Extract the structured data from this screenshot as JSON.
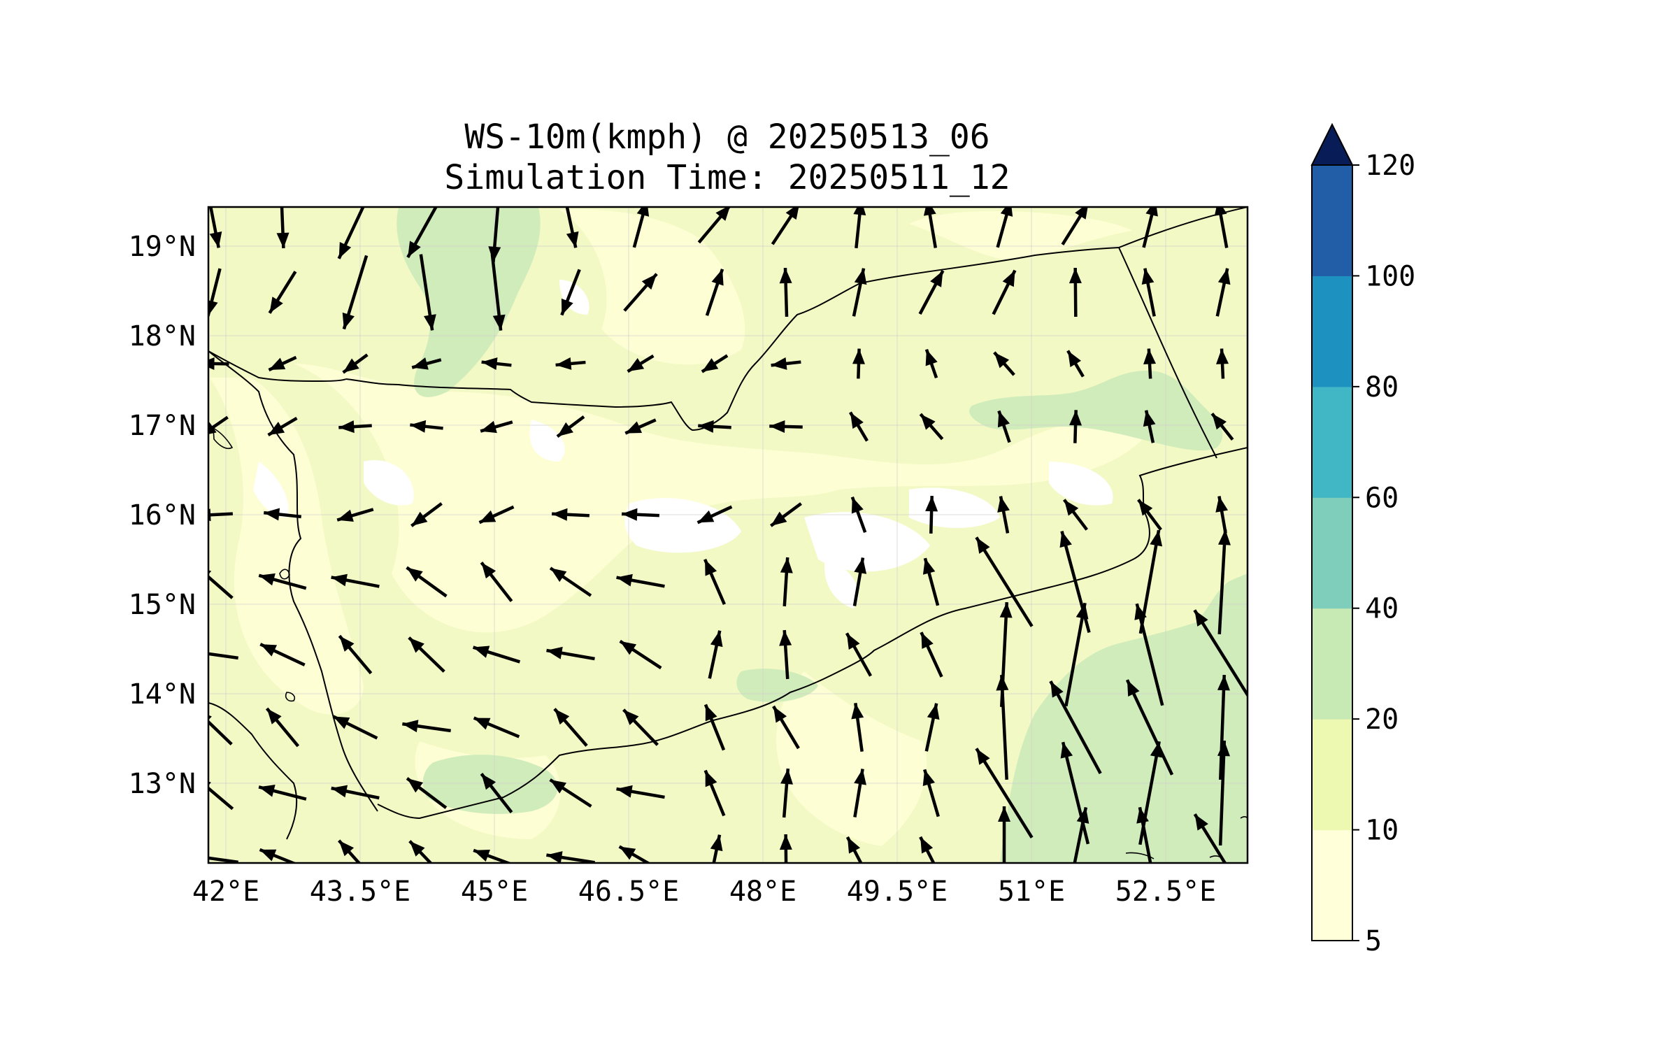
{
  "title": {
    "line1": "WS-10m(kmph) @ 20250513_06",
    "line2": "Simulation Time: 20250511_12"
  },
  "map": {
    "lon_range": [
      41.9,
      53.5
    ],
    "lat_range": [
      12.1,
      19.45
    ],
    "lon_ticks": [
      "42°E",
      "43.5°E",
      "45°E",
      "46.5°E",
      "48°E",
      "49.5°E",
      "51°E",
      "52.5°E"
    ],
    "lat_ticks": [
      "19°N",
      "18°N",
      "17°N",
      "16°N",
      "15°N",
      "14°N",
      "13°N"
    ],
    "gridlines": true,
    "field": "10 m wind speed (km/h)",
    "vectors": "black wind arrows"
  },
  "colorbar": {
    "levels": [
      "5",
      "10",
      "20",
      "40",
      "60",
      "80",
      "100",
      "120"
    ],
    "colors": [
      "#ffffd9",
      "#edf8b1",
      "#c7e9b4",
      "#7fcdbb",
      "#41b6c4",
      "#1d91c0",
      "#225ea8",
      "#253494"
    ],
    "extend_color": "#081d58",
    "extend": "max"
  }
}
